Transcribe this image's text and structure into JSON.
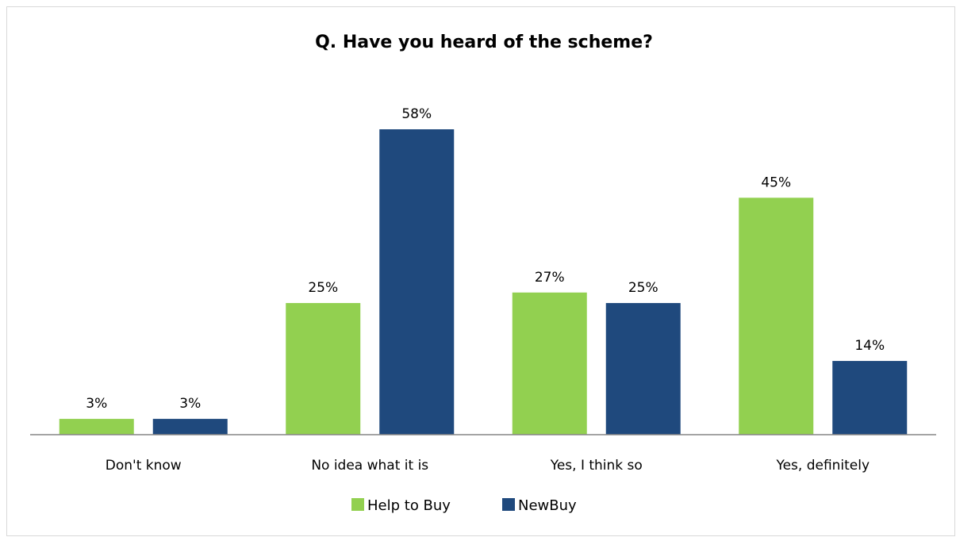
{
  "chart_data": {
    "type": "bar",
    "title": "Q. Have you heard of the scheme?",
    "categories": [
      "Don't know",
      "No idea what it is",
      "Yes, I think so",
      "Yes, definitely"
    ],
    "series": [
      {
        "name": "Help to Buy",
        "color": "#92d050",
        "values": [
          3,
          25,
          27,
          45
        ],
        "labels": [
          "3%",
          "25%",
          "27%",
          "45%"
        ]
      },
      {
        "name": "NewBuy",
        "color": "#1f497d",
        "values": [
          3,
          58,
          25,
          14
        ],
        "labels": [
          "3%",
          "58%",
          "25%",
          "14%"
        ]
      }
    ],
    "ylim": [
      0,
      60
    ],
    "grid": false,
    "legend": "bottom",
    "unit": "%"
  }
}
